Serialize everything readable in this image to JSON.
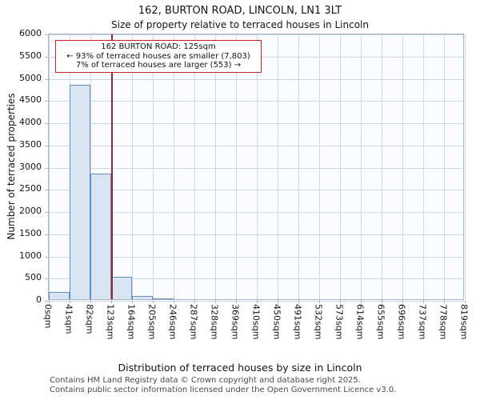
{
  "page": {
    "title": "162, BURTON ROAD, LINCOLN, LN1 3LT",
    "subtitle": "Size of property relative to terraced houses in Lincoln"
  },
  "annotation": {
    "line1": "162 BURTON ROAD: 125sqm",
    "line2": "← 93% of terraced houses are smaller (7,803)",
    "line3": "7% of terraced houses are larger (553) →"
  },
  "footer": {
    "line1": "Contains HM Land Registry data © Crown copyright and database right 2025.",
    "line2": "Contains public sector information licensed under the Open Government Licence v3.0."
  },
  "chart_data": {
    "type": "bar",
    "title": "162, BURTON ROAD, LINCOLN, LN1 3LT",
    "subtitle": "Size of property relative to terraced houses in Lincoln",
    "xlabel": "Distribution of terraced houses by size in Lincoln",
    "ylabel": "Number of terraced properties",
    "categories": [
      "0sqm",
      "41sqm",
      "82sqm",
      "123sqm",
      "164sqm",
      "205sqm",
      "246sqm",
      "287sqm",
      "328sqm",
      "369sqm",
      "410sqm",
      "450sqm",
      "491sqm",
      "532sqm",
      "573sqm",
      "614sqm",
      "655sqm",
      "696sqm",
      "737sqm",
      "778sqm",
      "819sqm"
    ],
    "values": [
      160,
      4820,
      2820,
      500,
      75,
      20,
      0,
      0,
      0,
      0,
      0,
      0,
      0,
      0,
      0,
      0,
      0,
      0,
      0,
      0
    ],
    "ylim": [
      0,
      6000
    ],
    "y_ticks": [
      0,
      500,
      1000,
      1500,
      2000,
      2500,
      3000,
      3500,
      4000,
      4500,
      5000,
      5500,
      6000
    ],
    "grid": true,
    "legend": "none",
    "marker": {
      "label": "162 BURTON ROAD",
      "value_sqm": 125,
      "axis_max_sqm": 820
    },
    "stats": {
      "smaller_pct": 93,
      "smaller_count": "7,803",
      "larger_pct": 7,
      "larger_count": "553"
    },
    "colors": {
      "bar_fill": "#dae5f3",
      "bar_border": "#6090c4",
      "marker_line": "#a02525",
      "annotation_border": "#cc2222",
      "grid_line": "#ccd7ea",
      "spine": "#a8b4c8",
      "plot_bg": "#fbfcff"
    }
  }
}
